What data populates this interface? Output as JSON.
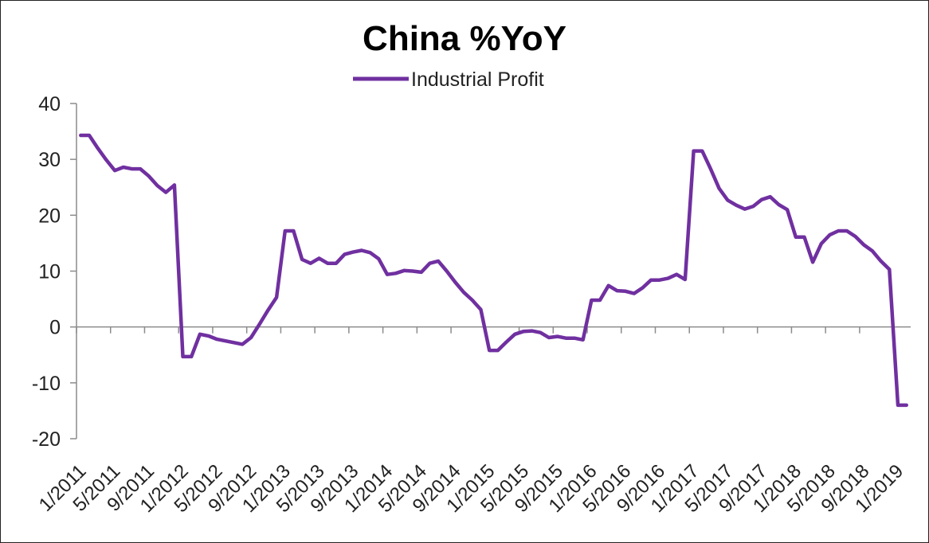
{
  "chart_data": {
    "type": "line",
    "title": "China %YoY",
    "legend_position": "top-center",
    "grid": false,
    "ylim": [
      -20,
      40
    ],
    "yticks": [
      "40",
      "30",
      "20",
      "10",
      "0",
      "-10",
      "-20"
    ],
    "xtick_labels": [
      "1/2011",
      "5/2011",
      "9/2011",
      "1/2012",
      "5/2012",
      "9/2012",
      "1/2013",
      "5/2013",
      "9/2013",
      "1/2014",
      "5/2014",
      "9/2014",
      "1/2015",
      "5/2015",
      "9/2015",
      "1/2016",
      "5/2016",
      "9/2016",
      "1/2017",
      "5/2017",
      "9/2017",
      "1/2018",
      "5/2018",
      "9/2018",
      "1/2019"
    ],
    "colors": {
      "series": "#7030a0",
      "axis": "#8c8c8c"
    },
    "series": [
      {
        "name": "Industrial Profit",
        "x": [
          "1/2011",
          "2/2011",
          "3/2011",
          "4/2011",
          "5/2011",
          "6/2011",
          "7/2011",
          "8/2011",
          "9/2011",
          "10/2011",
          "11/2011",
          "12/2011",
          "1/2012",
          "2/2012",
          "3/2012",
          "4/2012",
          "5/2012",
          "6/2012",
          "7/2012",
          "8/2012",
          "9/2012",
          "10/2012",
          "11/2012",
          "12/2012",
          "1/2013",
          "2/2013",
          "3/2013",
          "4/2013",
          "5/2013",
          "6/2013",
          "7/2013",
          "8/2013",
          "9/2013",
          "10/2013",
          "11/2013",
          "12/2013",
          "1/2014",
          "2/2014",
          "3/2014",
          "4/2014",
          "5/2014",
          "6/2014",
          "7/2014",
          "8/2014",
          "9/2014",
          "10/2014",
          "11/2014",
          "12/2014",
          "1/2015",
          "2/2015",
          "3/2015",
          "4/2015",
          "5/2015",
          "6/2015",
          "7/2015",
          "8/2015",
          "9/2015",
          "10/2015",
          "11/2015",
          "12/2015",
          "1/2016",
          "2/2016",
          "3/2016",
          "4/2016",
          "5/2016",
          "6/2016",
          "7/2016",
          "8/2016",
          "9/2016",
          "10/2016",
          "11/2016",
          "12/2016",
          "1/2017",
          "2/2017",
          "3/2017",
          "4/2017",
          "5/2017",
          "6/2017",
          "7/2017",
          "8/2017",
          "9/2017",
          "10/2017",
          "11/2017",
          "12/2017",
          "1/2018",
          "2/2018",
          "3/2018",
          "4/2018",
          "5/2018",
          "6/2018",
          "7/2018",
          "8/2018",
          "9/2018",
          "10/2018",
          "11/2018",
          "12/2018",
          "1/2019",
          "2/2019"
        ],
        "values": [
          34.3,
          34.3,
          32.0,
          29.9,
          28.0,
          28.6,
          28.3,
          28.3,
          27.0,
          25.3,
          24.1,
          25.4,
          -5.3,
          -5.3,
          -1.3,
          -1.6,
          -2.2,
          -2.5,
          -2.8,
          -3.1,
          -1.9,
          0.5,
          3.0,
          5.3,
          17.2,
          17.2,
          12.1,
          11.4,
          12.3,
          11.4,
          11.4,
          13.0,
          13.4,
          13.7,
          13.3,
          12.2,
          9.4,
          9.6,
          10.1,
          10.0,
          9.8,
          11.4,
          11.8,
          10.0,
          8.0,
          6.2,
          4.8,
          3.1,
          -4.2,
          -4.2,
          -2.7,
          -1.3,
          -0.8,
          -0.7,
          -1.0,
          -1.9,
          -1.7,
          -2.0,
          -2.0,
          -2.3,
          4.8,
          4.8,
          7.4,
          6.5,
          6.4,
          6.0,
          7.0,
          8.4,
          8.4,
          8.7,
          9.4,
          8.5,
          31.5,
          31.5,
          28.3,
          24.8,
          22.7,
          21.8,
          21.1,
          21.6,
          22.8,
          23.3,
          21.9,
          21.0,
          16.1,
          16.1,
          11.6,
          14.9,
          16.5,
          17.2,
          17.2,
          16.2,
          14.7,
          13.6,
          11.8,
          10.3,
          -14.0,
          -14.0
        ]
      }
    ]
  }
}
